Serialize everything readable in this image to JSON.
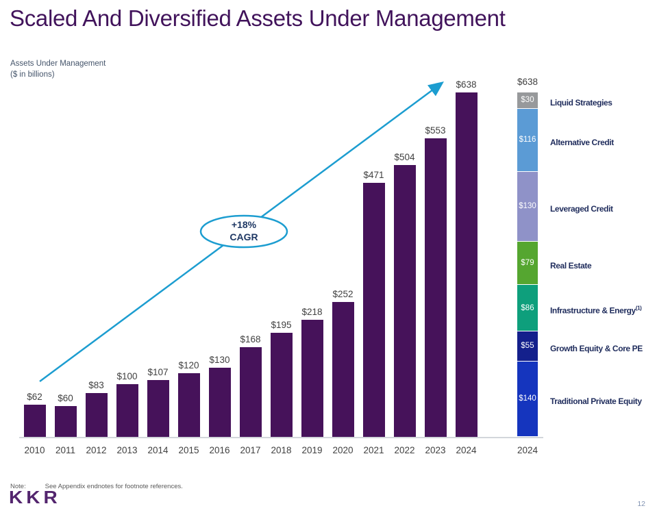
{
  "page": {
    "title": "Scaled And Diversified Assets Under Management",
    "page_number": "12"
  },
  "subtitle": {
    "line1": "Assets Under Management",
    "line2": "($ in billions)"
  },
  "annotation": {
    "line1": "+18%",
    "line2": "CAGR"
  },
  "note": {
    "label": "Note:",
    "text": "See Appendix endnotes for footnote references."
  },
  "logo_text": "KKR",
  "colors": {
    "title_purple": "#41135B",
    "bar_purple": "#46125A",
    "accent_cyan": "#1C9DD0",
    "annotation_navy": "#1F3864",
    "legend_navy": "#1F2C5C",
    "axis_gray": "#D2D6DB"
  },
  "chart_data": {
    "type": "bar",
    "title": "Assets Under Management",
    "ylabel": "$ in billions",
    "value_prefix": "$",
    "categories": [
      "2010",
      "2011",
      "2012",
      "2013",
      "2014",
      "2015",
      "2016",
      "2017",
      "2018",
      "2019",
      "2020",
      "2021",
      "2022",
      "2023",
      "2024"
    ],
    "values": [
      62,
      60,
      83,
      100,
      107,
      120,
      130,
      168,
      195,
      218,
      252,
      471,
      504,
      553,
      638
    ],
    "bar_color": "#46125A",
    "annotation": "+18% CAGR",
    "stacked_2024": {
      "category": "2024",
      "total": 638,
      "total_label": "$638",
      "segments": [
        {
          "label": "Liquid Strategies",
          "footnote": "",
          "value": 30,
          "color": "#97999B"
        },
        {
          "label": "Alternative Credit",
          "footnote": "",
          "value": 116,
          "color": "#5B9BD5"
        },
        {
          "label": "Leveraged Credit",
          "footnote": "",
          "value": 130,
          "color": "#8F92C8"
        },
        {
          "label": "Real Estate",
          "footnote": "",
          "value": 79,
          "color": "#55A630"
        },
        {
          "label": "Infrastructure & Energy",
          "footnote": "(1)",
          "value": 86,
          "color": "#0E9F7C"
        },
        {
          "label": "Growth Equity & Core PE",
          "footnote": "",
          "value": 55,
          "color": "#14208C"
        },
        {
          "label": "Traditional Private Equity",
          "footnote": "",
          "value": 140,
          "color": "#1535BE"
        }
      ]
    }
  }
}
